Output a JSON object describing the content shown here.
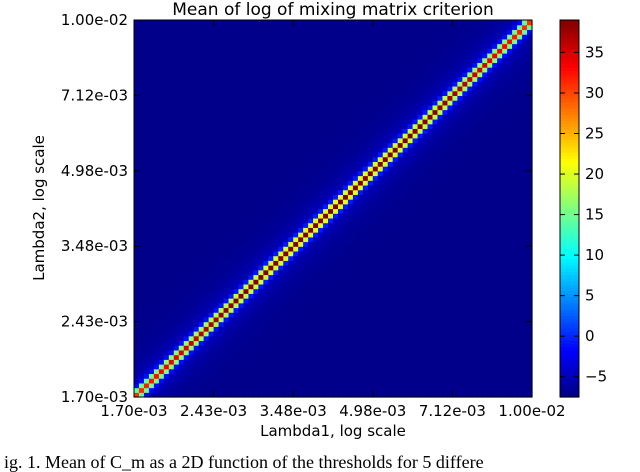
{
  "chart_data": {
    "type": "heatmap",
    "title": "Mean of log of mixing matrix criterion",
    "xlabel": "Lambda1, log scale",
    "ylabel": "Lambda2, log scale",
    "x_tick_labels": [
      "1.70e-03",
      "2.43e-03",
      "3.48e-03",
      "4.98e-03",
      "7.12e-03",
      "1.00e-02"
    ],
    "y_tick_labels": [
      "1.70e-03",
      "2.43e-03",
      "3.48e-03",
      "4.98e-03",
      "7.12e-03",
      "1.00e-02"
    ],
    "xlim": [
      0.0017,
      0.01
    ],
    "ylim": [
      0.0017,
      0.01
    ],
    "x_scale": "log",
    "y_scale": "log",
    "grid_size": 80,
    "colormap": "jet",
    "colorbar": {
      "range": [
        -7.5,
        39
      ],
      "tick_values": [
        -5,
        0,
        5,
        10,
        15,
        20,
        25,
        30,
        35
      ],
      "tick_labels": [
        "−5",
        "0",
        "5",
        "10",
        "15",
        "20",
        "25",
        "30",
        "35"
      ]
    },
    "description_values": {
      "background": -7,
      "diagonal_peak_low": 26,
      "diagonal_peak_high": 37
    }
  },
  "caption": "ig. 1. Mean of C_m as a 2D function of the thresholds for 5 differe"
}
